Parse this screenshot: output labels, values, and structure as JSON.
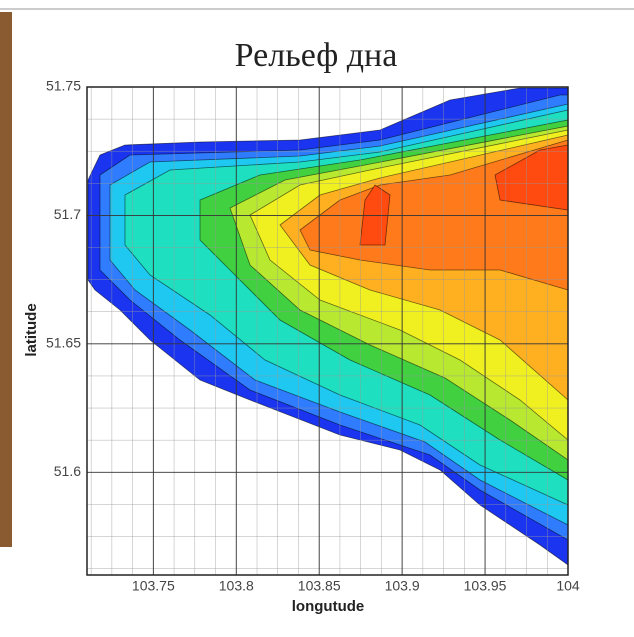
{
  "chart_data": {
    "type": "contour",
    "title": "Рельеф дна",
    "x_label": "longutude",
    "y_label": "latitude",
    "xlim": [
      103.71,
      104
    ],
    "ylim": [
      51.56,
      51.75
    ],
    "xticks": [
      103.75,
      103.8,
      103.85,
      103.9,
      103.95,
      104
    ],
    "yticks": [
      51.6,
      51.65,
      51.7,
      51.75
    ],
    "grid": true
  }
}
